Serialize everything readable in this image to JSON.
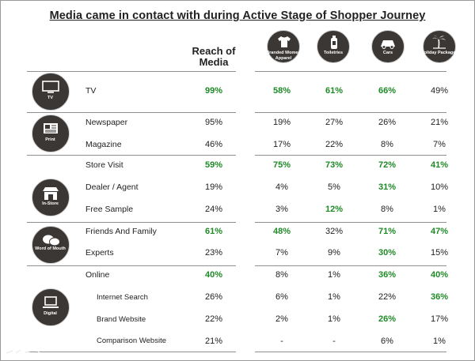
{
  "title": "Media came in contact with during Active Stage of Shopper Journey",
  "reach_header": "Reach of Media",
  "columns": [
    {
      "label": "Branded Women Apparel",
      "icon": "tshirt-icon"
    },
    {
      "label": "Toiletries",
      "icon": "bottle-icon"
    },
    {
      "label": "Cars",
      "icon": "car-icon"
    },
    {
      "label": "Holiday Packages",
      "icon": "palm-tree-icon"
    }
  ],
  "groups": [
    {
      "label": "TV",
      "icon": "tv-icon"
    },
    {
      "label": "Print",
      "icon": "newspaper-icon"
    },
    {
      "label": "In-Store",
      "icon": "storefront-icon"
    },
    {
      "label": "Word of Mouth",
      "icon": "speech-bubbles-icon"
    },
    {
      "label": "Digital",
      "icon": "laptop-icon"
    }
  ],
  "rows": [
    {
      "label": "TV",
      "reach": "99%",
      "cells": [
        "58%",
        "61%",
        "66%",
        "49%"
      ],
      "reach_hi": true,
      "hi": [
        true,
        true,
        true,
        false
      ]
    },
    {
      "label": "Newspaper",
      "reach": "95%",
      "cells": [
        "19%",
        "27%",
        "26%",
        "21%"
      ],
      "reach_hi": false,
      "hi": [
        false,
        false,
        false,
        false
      ]
    },
    {
      "label": "Magazine",
      "reach": "46%",
      "cells": [
        "17%",
        "22%",
        "8%",
        "7%"
      ],
      "reach_hi": false,
      "hi": [
        false,
        false,
        false,
        false
      ]
    },
    {
      "label": "Store Visit",
      "reach": "59%",
      "cells": [
        "75%",
        "73%",
        "72%",
        "41%"
      ],
      "reach_hi": true,
      "hi": [
        true,
        true,
        true,
        true
      ]
    },
    {
      "label": "Dealer / Agent",
      "reach": "19%",
      "cells": [
        "4%",
        "5%",
        "31%",
        "10%"
      ],
      "reach_hi": false,
      "hi": [
        false,
        false,
        true,
        false
      ]
    },
    {
      "label": "Free Sample",
      "reach": "24%",
      "cells": [
        "3%",
        "12%",
        "8%",
        "1%"
      ],
      "reach_hi": false,
      "hi": [
        false,
        true,
        false,
        false
      ]
    },
    {
      "label": "Friends And Family",
      "reach": "61%",
      "cells": [
        "48%",
        "32%",
        "71%",
        "47%"
      ],
      "reach_hi": true,
      "hi": [
        true,
        false,
        true,
        true
      ]
    },
    {
      "label": "Experts",
      "reach": "23%",
      "cells": [
        "7%",
        "9%",
        "30%",
        "15%"
      ],
      "reach_hi": false,
      "hi": [
        false,
        false,
        true,
        false
      ]
    },
    {
      "label": "Online",
      "reach": "40%",
      "cells": [
        "8%",
        "1%",
        "36%",
        "40%"
      ],
      "reach_hi": true,
      "hi": [
        false,
        false,
        true,
        true
      ]
    },
    {
      "label": "Internet Search",
      "reach": "26%",
      "cells": [
        "6%",
        "1%",
        "22%",
        "36%"
      ],
      "reach_hi": false,
      "hi": [
        false,
        false,
        false,
        true
      ]
    },
    {
      "label": "Brand Website",
      "reach": "22%",
      "cells": [
        "2%",
        "1%",
        "26%",
        "17%"
      ],
      "reach_hi": false,
      "hi": [
        false,
        false,
        true,
        false
      ]
    },
    {
      "label": "Comparison Website",
      "reach": "21%",
      "cells": [
        "-",
        "-",
        "6%",
        "1%"
      ],
      "reach_hi": false,
      "hi": [
        false,
        false,
        false,
        false
      ]
    }
  ],
  "colors": {
    "highlight": "#1e8a26",
    "icon_bg": "#3b3734",
    "text": "#222222"
  }
}
